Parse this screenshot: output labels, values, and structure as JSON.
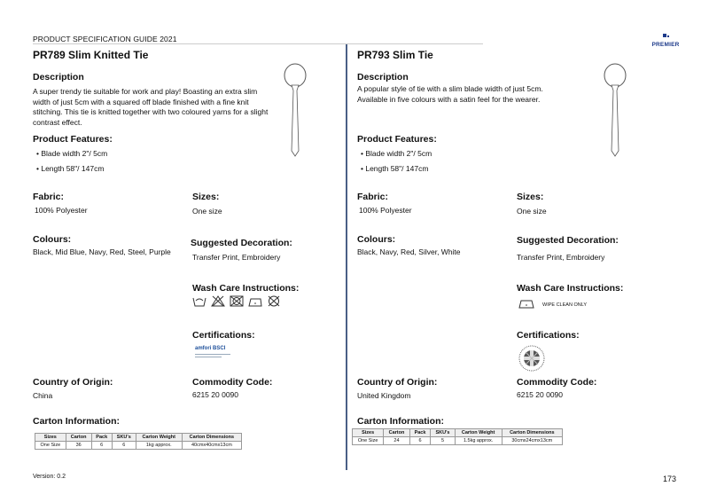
{
  "header": {
    "guide_title": "PRODUCT SPECIFICATION GUIDE 2021",
    "logo_text": "PREMIER"
  },
  "labels": {
    "description": "Description",
    "features": "Product Features:",
    "fabric": "Fabric:",
    "sizes": "Sizes:",
    "colours": "Colours:",
    "decoration": "Suggested Decoration:",
    "wash": "Wash Care Instructions:",
    "certifications": "Certifications:",
    "origin": "Country of Origin:",
    "commodity": "Commodity Code:",
    "carton": "Carton Information:"
  },
  "table_headers": [
    "Sizes",
    "Carton",
    "Pack",
    "SKU's",
    "Carton Weight",
    "Carton Dimensions"
  ],
  "products": [
    {
      "title": "PR789 Slim Knitted Tie",
      "description": "A super trendy tie suitable for work and play! Boasting an extra slim width of just 5cm with a squared off blade finished with a fine knit stitching. This tie is knitted together with two coloured yarns for a slight contrast effect.",
      "features": [
        "• Blade width 2\"/ 5cm",
        "• Length 58\"/ 147cm"
      ],
      "fabric": "100% Polyester",
      "sizes": "One size",
      "colours": "Black, Mid Blue, Navy, Red, Steel, Purple",
      "decoration": "Transfer Print, Embroidery",
      "wash_icons": [
        "hand-wash-icon",
        "no-bleach-icon",
        "no-tumble-dry-icon",
        "iron-low-icon",
        "no-dry-clean-icon"
      ],
      "certification": "amfori BSCI",
      "origin": "China",
      "commodity": "6215 20 0090",
      "carton_row": [
        "One Size",
        "36",
        "6",
        "6",
        "1kg approx.",
        "40cmx40cmx13cm"
      ]
    },
    {
      "title": "PR793 Slim Tie",
      "description": "A popular style of tie with a slim blade width of just 5cm. Available in five colours with a satin feel for the wearer.",
      "features": [
        "• Blade width 2\"/ 5cm",
        "• Length 58\"/ 147cm"
      ],
      "fabric": "100% Polyester",
      "sizes": "One size",
      "colours": "Black, Navy, Red, Silver, White",
      "decoration": "Transfer Print, Embroidery",
      "wash_note": "WIPE CLEAN ONLY",
      "certification": "Made in the UK",
      "origin": "United Kingdom",
      "commodity": "6215 20 0090",
      "carton_row": [
        "One Size",
        "24",
        "6",
        "5",
        "1.5kg approx.",
        "30cmx24cmx13cm"
      ]
    }
  ],
  "footer": {
    "version": "Version: 0.2",
    "page": "173"
  }
}
